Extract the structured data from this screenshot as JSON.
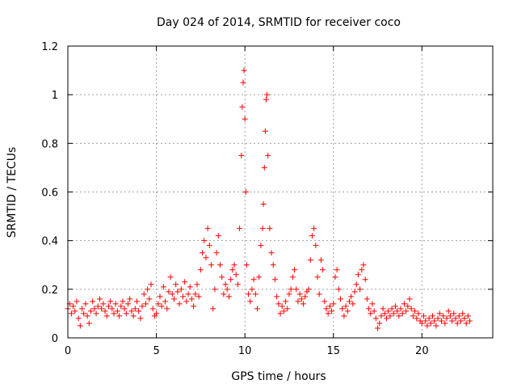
{
  "chart_data": {
    "type": "scatter",
    "title": "Day 024 of 2014, SRMTID for receiver coco",
    "xlabel": "GPS time / hours",
    "ylabel": "SRMTID / TECUs",
    "xlim": [
      0,
      24
    ],
    "ylim": [
      0,
      1.2
    ],
    "x_ticks": [
      0,
      5,
      10,
      15,
      20
    ],
    "x_tick_labels": [
      "0",
      "5",
      "10",
      "15",
      "20"
    ],
    "y_ticks": [
      0,
      0.2,
      0.4,
      0.6,
      0.8,
      1.0,
      1.2
    ],
    "y_tick_labels": [
      "0",
      "0.2",
      "0.4",
      "0.6",
      "0.8",
      "1",
      "1.2"
    ],
    "grid": true,
    "marker": "+",
    "color": "#ff0000",
    "series": [
      {
        "name": "SRMTID",
        "points": [
          [
            0.0,
            0.12
          ],
          [
            0.1,
            0.14
          ],
          [
            0.2,
            0.1
          ],
          [
            0.3,
            0.13
          ],
          [
            0.4,
            0.11
          ],
          [
            0.5,
            0.15
          ],
          [
            0.6,
            0.08
          ],
          [
            0.7,
            0.05
          ],
          [
            0.8,
            0.12
          ],
          [
            0.9,
            0.1
          ],
          [
            1.0,
            0.14
          ],
          [
            1.1,
            0.09
          ],
          [
            1.2,
            0.06
          ],
          [
            1.3,
            0.11
          ],
          [
            1.4,
            0.15
          ],
          [
            1.5,
            0.12
          ],
          [
            1.6,
            0.1
          ],
          [
            1.7,
            0.13
          ],
          [
            1.8,
            0.16
          ],
          [
            1.9,
            0.12
          ],
          [
            2.0,
            0.14
          ],
          [
            2.1,
            0.11
          ],
          [
            2.2,
            0.09
          ],
          [
            2.3,
            0.13
          ],
          [
            2.4,
            0.15
          ],
          [
            2.5,
            0.12
          ],
          [
            2.6,
            0.1
          ],
          [
            2.7,
            0.14
          ],
          [
            2.8,
            0.11
          ],
          [
            2.9,
            0.09
          ],
          [
            3.0,
            0.13
          ],
          [
            3.1,
            0.15
          ],
          [
            3.2,
            0.12
          ],
          [
            3.3,
            0.1
          ],
          [
            3.4,
            0.14
          ],
          [
            3.5,
            0.16
          ],
          [
            3.6,
            0.11
          ],
          [
            3.7,
            0.09
          ],
          [
            3.8,
            0.12
          ],
          [
            3.9,
            0.15
          ],
          [
            4.0,
            0.11
          ],
          [
            4.1,
            0.08
          ],
          [
            4.2,
            0.13
          ],
          [
            4.3,
            0.18
          ],
          [
            4.4,
            0.14
          ],
          [
            4.5,
            0.2
          ],
          [
            4.6,
            0.16
          ],
          [
            4.7,
            0.22
          ],
          [
            4.8,
            0.12
          ],
          [
            4.9,
            0.09
          ],
          [
            5.0,
            0.1
          ],
          [
            5.1,
            0.14
          ],
          [
            5.2,
            0.17
          ],
          [
            5.3,
            0.13
          ],
          [
            5.4,
            0.21
          ],
          [
            5.5,
            0.15
          ],
          [
            5.6,
            0.12
          ],
          [
            5.7,
            0.19
          ],
          [
            5.8,
            0.25
          ],
          [
            5.9,
            0.18
          ],
          [
            6.0,
            0.16
          ],
          [
            6.1,
            0.22
          ],
          [
            6.2,
            0.19
          ],
          [
            6.3,
            0.14
          ],
          [
            6.4,
            0.2
          ],
          [
            6.5,
            0.17
          ],
          [
            6.6,
            0.23
          ],
          [
            6.7,
            0.15
          ],
          [
            6.8,
            0.18
          ],
          [
            6.9,
            0.21
          ],
          [
            7.0,
            0.16
          ],
          [
            7.1,
            0.13
          ],
          [
            7.2,
            0.18
          ],
          [
            7.3,
            0.22
          ],
          [
            7.4,
            0.17
          ],
          [
            7.5,
            0.28
          ],
          [
            7.6,
            0.35
          ],
          [
            7.7,
            0.4
          ],
          [
            7.8,
            0.33
          ],
          [
            7.9,
            0.45
          ],
          [
            8.0,
            0.38
          ],
          [
            8.1,
            0.3
          ],
          [
            8.2,
            0.12
          ],
          [
            8.3,
            0.2
          ],
          [
            8.4,
            0.35
          ],
          [
            8.5,
            0.42
          ],
          [
            8.6,
            0.3
          ],
          [
            8.7,
            0.25
          ],
          [
            8.8,
            0.18
          ],
          [
            8.9,
            0.22
          ],
          [
            9.0,
            0.2
          ],
          [
            9.1,
            0.17
          ],
          [
            9.2,
            0.24
          ],
          [
            9.3,
            0.28
          ],
          [
            9.4,
            0.3
          ],
          [
            9.5,
            0.26
          ],
          [
            9.6,
            0.22
          ],
          [
            9.7,
            0.45
          ],
          [
            9.8,
            0.75
          ],
          [
            9.85,
            0.95
          ],
          [
            9.9,
            1.05
          ],
          [
            9.95,
            1.1
          ],
          [
            10.0,
            0.9
          ],
          [
            10.05,
            0.6
          ],
          [
            10.1,
            0.3
          ],
          [
            10.2,
            0.18
          ],
          [
            10.3,
            0.15
          ],
          [
            10.4,
            0.2
          ],
          [
            10.5,
            0.24
          ],
          [
            10.6,
            0.18
          ],
          [
            10.7,
            0.12
          ],
          [
            10.8,
            0.25
          ],
          [
            10.9,
            0.38
          ],
          [
            11.0,
            0.45
          ],
          [
            11.05,
            0.55
          ],
          [
            11.1,
            0.7
          ],
          [
            11.15,
            0.85
          ],
          [
            11.2,
            0.98
          ],
          [
            11.25,
            1.0
          ],
          [
            11.3,
            0.75
          ],
          [
            11.4,
            0.45
          ],
          [
            11.5,
            0.35
          ],
          [
            11.6,
            0.3
          ],
          [
            11.7,
            0.24
          ],
          [
            11.8,
            0.17
          ],
          [
            11.9,
            0.14
          ],
          [
            12.0,
            0.1
          ],
          [
            12.1,
            0.13
          ],
          [
            12.2,
            0.11
          ],
          [
            12.3,
            0.15
          ],
          [
            12.4,
            0.12
          ],
          [
            12.5,
            0.18
          ],
          [
            12.6,
            0.2
          ],
          [
            12.7,
            0.25
          ],
          [
            12.8,
            0.28
          ],
          [
            12.9,
            0.2
          ],
          [
            13.0,
            0.15
          ],
          [
            13.1,
            0.18
          ],
          [
            13.2,
            0.16
          ],
          [
            13.3,
            0.14
          ],
          [
            13.4,
            0.17
          ],
          [
            13.5,
            0.19
          ],
          [
            13.6,
            0.2
          ],
          [
            13.7,
            0.32
          ],
          [
            13.8,
            0.42
          ],
          [
            13.9,
            0.45
          ],
          [
            14.0,
            0.38
          ],
          [
            14.1,
            0.25
          ],
          [
            14.2,
            0.18
          ],
          [
            14.3,
            0.32
          ],
          [
            14.4,
            0.28
          ],
          [
            14.5,
            0.15
          ],
          [
            14.6,
            0.12
          ],
          [
            14.7,
            0.1
          ],
          [
            14.8,
            0.13
          ],
          [
            14.9,
            0.11
          ],
          [
            15.0,
            0.14
          ],
          [
            15.1,
            0.25
          ],
          [
            15.2,
            0.28
          ],
          [
            15.3,
            0.2
          ],
          [
            15.4,
            0.16
          ],
          [
            15.5,
            0.12
          ],
          [
            15.6,
            0.09
          ],
          [
            15.7,
            0.13
          ],
          [
            15.8,
            0.11
          ],
          [
            15.9,
            0.15
          ],
          [
            16.0,
            0.17
          ],
          [
            16.1,
            0.14
          ],
          [
            16.2,
            0.19
          ],
          [
            16.3,
            0.22
          ],
          [
            16.4,
            0.26
          ],
          [
            16.5,
            0.2
          ],
          [
            16.6,
            0.28
          ],
          [
            16.7,
            0.3
          ],
          [
            16.8,
            0.24
          ],
          [
            16.9,
            0.16
          ],
          [
            17.0,
            0.12
          ],
          [
            17.1,
            0.1
          ],
          [
            17.2,
            0.14
          ],
          [
            17.3,
            0.11
          ],
          [
            17.4,
            0.08
          ],
          [
            17.5,
            0.04
          ],
          [
            17.6,
            0.06
          ],
          [
            17.7,
            0.09
          ],
          [
            17.8,
            0.12
          ],
          [
            17.9,
            0.1
          ],
          [
            18.0,
            0.08
          ],
          [
            18.1,
            0.11
          ],
          [
            18.2,
            0.09
          ],
          [
            18.3,
            0.12
          ],
          [
            18.4,
            0.1
          ],
          [
            18.5,
            0.13
          ],
          [
            18.6,
            0.11
          ],
          [
            18.7,
            0.09
          ],
          [
            18.8,
            0.12
          ],
          [
            18.9,
            0.1
          ],
          [
            19.0,
            0.14
          ],
          [
            19.1,
            0.11
          ],
          [
            19.2,
            0.13
          ],
          [
            19.3,
            0.16
          ],
          [
            19.4,
            0.12
          ],
          [
            19.5,
            0.09
          ],
          [
            19.6,
            0.11
          ],
          [
            19.7,
            0.08
          ],
          [
            19.8,
            0.1
          ],
          [
            19.9,
            0.07
          ],
          [
            20.0,
            0.06
          ],
          [
            20.1,
            0.09
          ],
          [
            20.2,
            0.07
          ],
          [
            20.3,
            0.05
          ],
          [
            20.4,
            0.08
          ],
          [
            20.5,
            0.06
          ],
          [
            20.6,
            0.09
          ],
          [
            20.7,
            0.07
          ],
          [
            20.8,
            0.05
          ],
          [
            20.9,
            0.08
          ],
          [
            21.0,
            0.1
          ],
          [
            21.1,
            0.07
          ],
          [
            21.2,
            0.09
          ],
          [
            21.3,
            0.06
          ],
          [
            21.4,
            0.08
          ],
          [
            21.5,
            0.11
          ],
          [
            21.6,
            0.09
          ],
          [
            21.7,
            0.07
          ],
          [
            21.8,
            0.1
          ],
          [
            21.9,
            0.08
          ],
          [
            22.0,
            0.06
          ],
          [
            22.1,
            0.09
          ],
          [
            22.2,
            0.07
          ],
          [
            22.3,
            0.1
          ],
          [
            22.4,
            0.08
          ],
          [
            22.5,
            0.06
          ],
          [
            22.6,
            0.09
          ],
          [
            22.7,
            0.07
          ]
        ]
      }
    ]
  }
}
